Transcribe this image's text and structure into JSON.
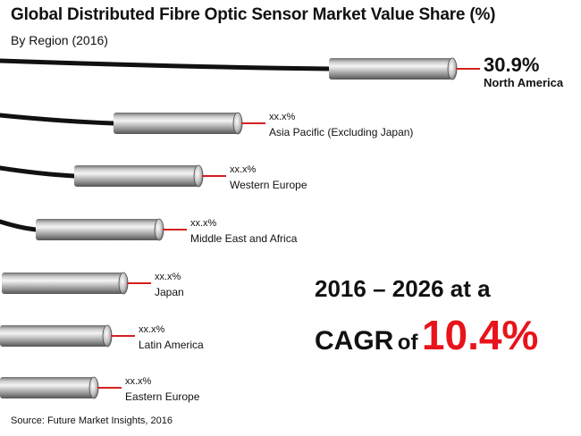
{
  "title": "Global Distributed Fibre Optic Sensor Market Value Share (%)",
  "subtitle": "By Region (2016)",
  "chart_data": {
    "type": "bar",
    "title": "Global Distributed Fibre Optic Sensor Market Value Share (%)",
    "subtitle": "By Region (2016)",
    "categories": [
      "North America",
      "Asia Pacific (Excluding Japan)",
      "Western Europe",
      "Middle East and Africa",
      "Japan",
      "Latin America",
      "Eastern Europe"
    ],
    "value_labels": [
      "30.9%",
      "xx.x%",
      "xx.x%",
      "xx.x%",
      "xx.x%",
      "xx.x%",
      "xx.x%"
    ],
    "values": [
      30.9,
      null,
      null,
      null,
      null,
      null,
      null
    ],
    "unit": "%",
    "colors": {
      "cable": "#111111",
      "sleeve_light": "#f4f4f4",
      "sleeve_dark": "#6e6e6e",
      "pointer": "#d42020"
    }
  },
  "cagr": {
    "line1": "2016 – 2026 at a",
    "word": "CAGR",
    "of": "of",
    "value": "10.4%",
    "value_color": "#e8141b"
  },
  "source": "Source: Future Market Insights, 2016"
}
